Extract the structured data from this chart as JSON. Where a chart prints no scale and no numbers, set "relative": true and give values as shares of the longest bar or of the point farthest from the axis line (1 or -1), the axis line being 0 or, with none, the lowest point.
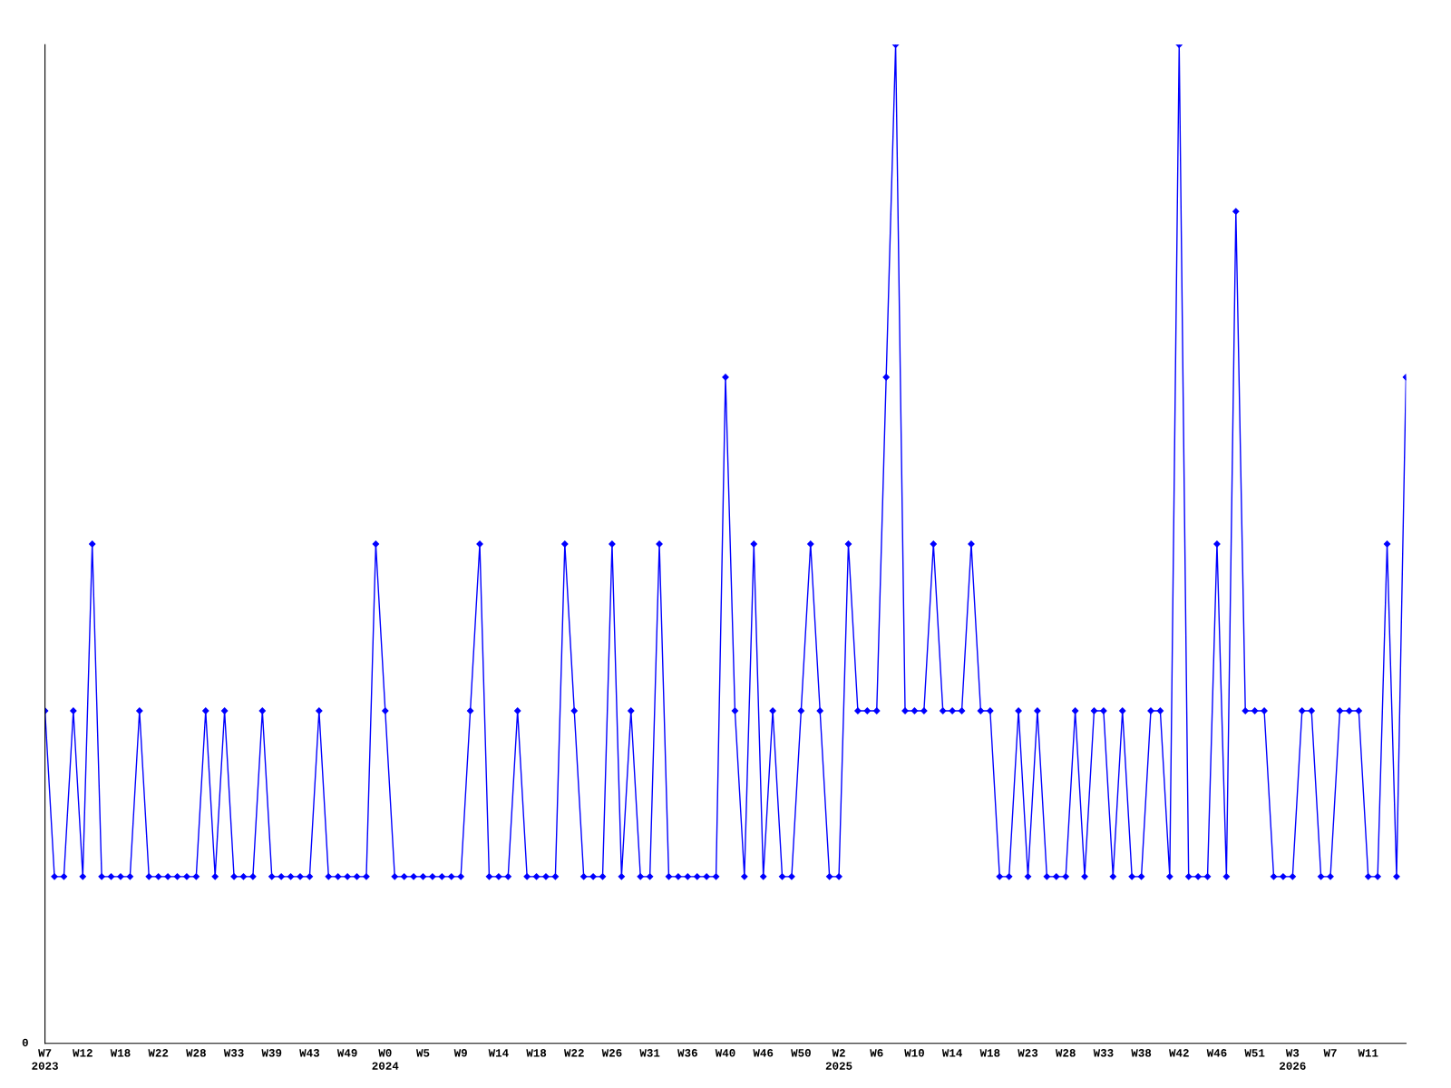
{
  "chart_data": {
    "type": "line",
    "relative": true,
    "marker": "diamond",
    "line_style": "solid",
    "grid": false,
    "legend": false,
    "annotations": [
      "0"
    ],
    "categories": [
      "W7\n2023",
      null,
      null,
      null,
      "W12",
      null,
      null,
      null,
      "W18",
      null,
      null,
      null,
      "W22",
      null,
      null,
      null,
      "W28",
      null,
      null,
      null,
      "W33",
      null,
      null,
      null,
      "W39",
      null,
      null,
      null,
      "W43",
      null,
      null,
      null,
      "W49",
      null,
      null,
      null,
      "W0\n2024",
      null,
      null,
      null,
      "W5",
      null,
      null,
      null,
      "W9",
      null,
      null,
      null,
      "W14",
      null,
      null,
      null,
      "W18",
      null,
      null,
      null,
      "W22",
      null,
      null,
      null,
      "W26",
      null,
      null,
      null,
      "W31",
      null,
      null,
      null,
      "W36",
      null,
      null,
      null,
      "W40",
      null,
      null,
      null,
      "W46",
      null,
      null,
      null,
      "W50",
      null,
      null,
      null,
      "W2\n2025",
      null,
      null,
      null,
      "W6",
      null,
      null,
      null,
      "W10",
      null,
      null,
      null,
      "W14",
      null,
      null,
      null,
      "W18",
      null,
      null,
      null,
      "W23",
      null,
      null,
      null,
      "W28",
      null,
      null,
      null,
      "W33",
      null,
      null,
      null,
      "W38",
      null,
      null,
      null,
      "W42",
      null,
      null,
      null,
      "W46",
      null,
      null,
      null,
      "W51",
      null,
      null,
      null,
      "W3\n2026",
      null,
      null,
      null,
      "W7",
      null,
      null,
      null,
      "W11",
      null,
      null,
      null,
      null
    ],
    "series": [
      {
        "color": "#0000ff",
        "values": [
          0.333,
          0.167,
          0.167,
          0.333,
          0.167,
          0.5,
          0.167,
          0.167,
          0.167,
          0.167,
          0.333,
          0.167,
          0.167,
          0.167,
          0.167,
          0.167,
          0.167,
          0.333,
          0.167,
          0.333,
          0.167,
          0.167,
          0.167,
          0.333,
          0.167,
          0.167,
          0.167,
          0.167,
          0.167,
          0.333,
          0.167,
          0.167,
          0.167,
          0.167,
          0.167,
          0.5,
          0.333,
          0.167,
          0.167,
          0.167,
          0.167,
          0.167,
          0.167,
          0.167,
          0.167,
          0.333,
          0.5,
          0.167,
          0.167,
          0.167,
          0.333,
          0.167,
          0.167,
          0.167,
          0.167,
          0.5,
          0.333,
          0.167,
          0.167,
          0.167,
          0.5,
          0.167,
          0.333,
          0.167,
          0.167,
          0.5,
          0.167,
          0.167,
          0.167,
          0.167,
          0.167,
          0.167,
          0.667,
          0.333,
          0.167,
          0.5,
          0.167,
          0.333,
          0.167,
          0.167,
          0.333,
          0.5,
          0.333,
          0.167,
          0.167,
          0.5,
          0.333,
          0.333,
          0.333,
          0.667,
          1,
          0.333,
          0.333,
          0.333,
          0.5,
          0.333,
          0.333,
          0.333,
          0.5,
          0.333,
          0.333,
          0.167,
          0.167,
          0.333,
          0.167,
          0.333,
          0.167,
          0.167,
          0.167,
          0.333,
          0.167,
          0.333,
          0.333,
          0.167,
          0.333,
          0.167,
          0.167,
          0.333,
          0.333,
          0.167,
          1,
          0.167,
          0.167,
          0.167,
          0.5,
          0.167,
          0.833,
          0.333,
          0.333,
          0.333,
          0.167,
          0.167,
          0.167,
          0.333,
          0.333,
          0.167,
          0.167,
          0.333,
          0.333,
          0.333,
          0.167,
          0.167,
          0.5,
          0.167,
          0.667
        ]
      }
    ]
  }
}
